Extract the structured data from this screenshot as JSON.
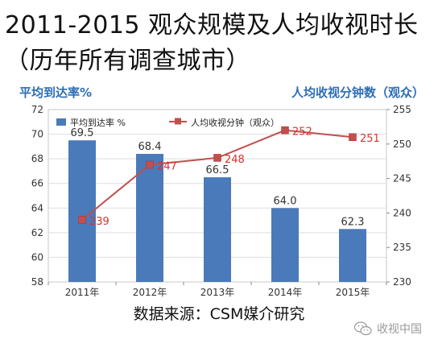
{
  "title_line1": "2011-2015 观众规模及人均收视时长",
  "title_line2": "（历年所有调查城市）",
  "source": "数据来源：CSM媒介研究",
  "watermark": "收视中国",
  "watermark_icon": "wechat-icon",
  "chart_data": {
    "type": "bar",
    "categories": [
      "2011年",
      "2012年",
      "2013年",
      "2014年",
      "2015年"
    ],
    "left_axis_title": "平均到达率%",
    "right_axis_title": "人均收视分钟数（观众）",
    "ylim_left": [
      58,
      72
    ],
    "yticks_left": [
      58,
      60,
      62,
      64,
      66,
      68,
      70,
      72
    ],
    "ylim_right": [
      230,
      255
    ],
    "yticks_right": [
      230,
      235,
      240,
      245,
      250,
      255
    ],
    "legend_placement": "top-left",
    "series": [
      {
        "name": "平均到达率 %",
        "type": "bar",
        "axis": "left",
        "color": "#4a7ab9",
        "values": [
          69.5,
          68.4,
          66.5,
          64.0,
          62.3
        ],
        "labels": [
          "69.5",
          "68.4",
          "66.5",
          "64.0",
          "62.3"
        ]
      },
      {
        "name": "人均收视分钟（观众）",
        "type": "line",
        "axis": "right",
        "color": "#c0504d",
        "values": [
          239,
          247,
          248,
          252,
          251
        ],
        "labels": [
          "239",
          "247",
          "248",
          "252",
          "251"
        ]
      }
    ],
    "colors": {
      "axis_title": "#2e6db4",
      "bar_label": "#333333",
      "line_label": "#d9332e",
      "grid": "#dddddd"
    }
  }
}
